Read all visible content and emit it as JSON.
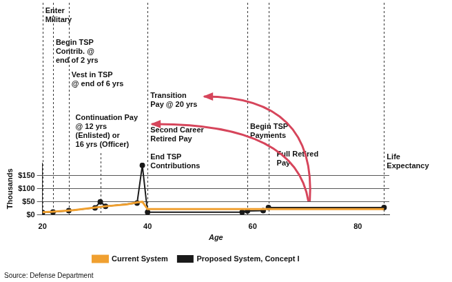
{
  "chart_data": {
    "type": "line",
    "x_label": "Age",
    "y_label": "Thousands",
    "source": "Source: Defense Department",
    "xlim": [
      20,
      86
    ],
    "xticks": [
      20,
      40,
      60,
      80
    ],
    "ylim": [
      0,
      200
    ],
    "yticks": [
      {
        "value": 0,
        "label": "$0"
      },
      {
        "value": 50,
        "label": "$50"
      },
      {
        "value": 100,
        "label": "$100"
      },
      {
        "value": 150,
        "label": "$150"
      }
    ],
    "grid": true,
    "legend": "bottom",
    "series": [
      {
        "name": "Current System",
        "color": "#f0a030",
        "marker": "none",
        "x": [
          20,
          22,
          26,
          30,
          32,
          36,
          38,
          39,
          40,
          85
        ],
        "values": [
          10,
          12,
          18,
          28,
          33,
          40,
          48,
          50,
          22,
          22
        ]
      },
      {
        "name": "Proposed System, Concept I",
        "color": "#1a1a1a",
        "marker": "circle",
        "x": [
          20,
          22,
          25,
          30,
          31,
          32,
          38,
          39,
          40,
          58,
          59,
          62,
          63,
          85
        ],
        "values": [
          9,
          11,
          16,
          27,
          50,
          33,
          45,
          190,
          10,
          10,
          15,
          16,
          28,
          28
        ]
      }
    ],
    "annotations": [
      {
        "x": 20,
        "labels": [
          [
            "Enter",
            "Military"
          ]
        ]
      },
      {
        "x": 22,
        "labels": [
          [
            "Begin TSP",
            "Contrib. @",
            "end of 2 yrs"
          ]
        ]
      },
      {
        "x": 25,
        "labels": [
          [
            "Vest in TSP",
            "@ end of 6 yrs"
          ]
        ]
      },
      {
        "x": 31,
        "labels": [
          [
            "Continuation Pay",
            "@ 12 yrs",
            "(Enlisted) or",
            "16 yrs (Officer)"
          ]
        ]
      },
      {
        "x": 40,
        "labels": [
          [
            "Transition",
            "Pay @ 20 yrs"
          ],
          [
            "Second Career",
            "Retired Pay"
          ],
          [
            "End TSP",
            "Contributions"
          ]
        ]
      },
      {
        "x": 59,
        "labels": [
          [
            "Begin TSP",
            "Payments"
          ]
        ]
      },
      {
        "x": 63,
        "labels": [
          [
            "Full Retired",
            "Pay"
          ]
        ]
      },
      {
        "x": 85,
        "labels": [
          [
            "Life",
            "Expectancy"
          ]
        ]
      }
    ]
  }
}
